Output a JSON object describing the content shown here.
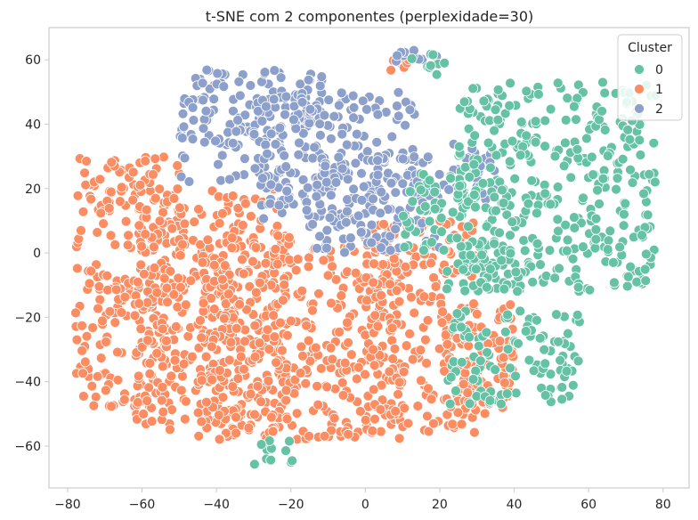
{
  "chart_data": {
    "type": "scatter",
    "title": "t-SNE com 2 componentes (perplexidade=30)",
    "xlabel": "",
    "ylabel": "",
    "xlim": [
      -85,
      87
    ],
    "ylim": [
      -73,
      70
    ],
    "x_ticks": [
      -80,
      -60,
      -40,
      -20,
      0,
      20,
      40,
      60,
      80
    ],
    "y_ticks": [
      -60,
      -40,
      -20,
      0,
      20,
      40,
      60
    ],
    "x_tick_labels": [
      "−80",
      "−60",
      "−40",
      "−20",
      "0",
      "20",
      "40",
      "60",
      "80"
    ],
    "y_tick_labels": [
      "−60",
      "−40",
      "−20",
      "0",
      "20",
      "40",
      "60"
    ],
    "grid": false,
    "legend": {
      "title": "Cluster",
      "placement": "top-right",
      "entries": [
        {
          "label": "0",
          "color": "#66c2a5"
        },
        {
          "label": "1",
          "color": "#fc8d62"
        },
        {
          "label": "2",
          "color": "#8da0cb"
        }
      ]
    },
    "series": [
      {
        "name": "1",
        "color": "#fc8d62",
        "regions": [
          {
            "x": [
              -78,
              -48
            ],
            "y": [
              -48,
              30
            ]
          },
          {
            "x": [
              -62,
              -20
            ],
            "y": [
              -55,
              20
            ]
          },
          {
            "x": [
              -45,
              10
            ],
            "y": [
              -58,
              5
            ]
          },
          {
            "x": [
              0,
              30
            ],
            "y": [
              -56,
              10
            ]
          },
          {
            "x": [
              20,
              40
            ],
            "y": [
              -50,
              -15
            ]
          },
          {
            "x": [
              6,
              18
            ],
            "y": [
              56,
              62
            ]
          }
        ]
      },
      {
        "name": "2",
        "color": "#8da0cb",
        "regions": [
          {
            "x": [
              -50,
              -10
            ],
            "y": [
              20,
              57
            ]
          },
          {
            "x": [
              -30,
              15
            ],
            "y": [
              10,
              50
            ]
          },
          {
            "x": [
              -15,
              20
            ],
            "y": [
              0,
              30
            ]
          },
          {
            "x": [
              20,
              35
            ],
            "y": [
              15,
              35
            ]
          },
          {
            "x": [
              8,
              20
            ],
            "y": [
              58,
              63
            ]
          }
        ]
      },
      {
        "name": "0",
        "color": "#66c2a5",
        "regions": [
          {
            "x": [
              25,
              78
            ],
            "y": [
              -12,
              53
            ]
          },
          {
            "x": [
              10,
              30
            ],
            "y": [
              0,
              25
            ]
          },
          {
            "x": [
              20,
              42
            ],
            "y": [
              -12,
              0
            ]
          },
          {
            "x": [
              22,
              58
            ],
            "y": [
              -47,
              -18
            ]
          },
          {
            "x": [
              -30,
              -18
            ],
            "y": [
              -66,
              -58
            ]
          },
          {
            "x": [
              12,
              22
            ],
            "y": [
              55,
              62
            ]
          }
        ]
      }
    ]
  }
}
